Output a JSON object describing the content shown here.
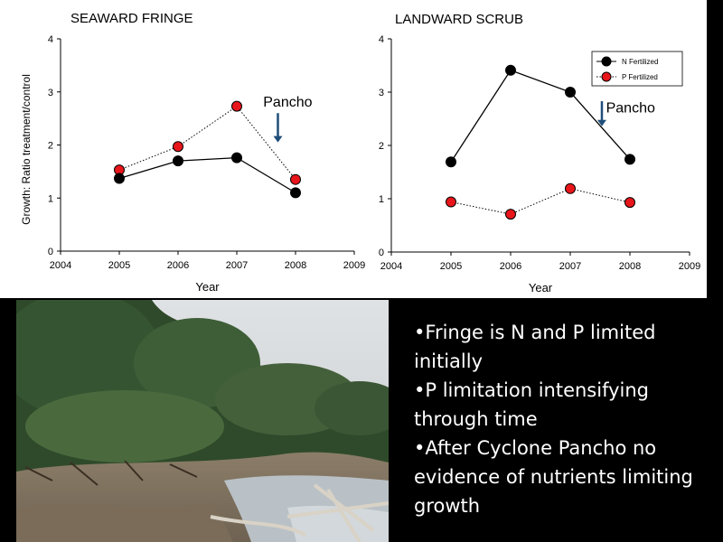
{
  "chart_data": [
    {
      "type": "line",
      "title": "SEAWARD FRINGE",
      "xlabel": "Year",
      "ylabel": "Growth: Ratio treatment/control",
      "xlim": [
        2004,
        2009
      ],
      "ylim": [
        0,
        4
      ],
      "x_ticks": [
        2004,
        2005,
        2006,
        2007,
        2008,
        2009
      ],
      "y_ticks": [
        0,
        1,
        2,
        3,
        4
      ],
      "x": [
        2005,
        2006,
        2007,
        2008
      ],
      "series": [
        {
          "key": "N",
          "style": "solid",
          "color": "#000000",
          "values": [
            1.37,
            1.7,
            1.76,
            1.1
          ]
        },
        {
          "key": "P",
          "style": "dotted",
          "color": "#e8161b",
          "values": [
            1.53,
            1.97,
            2.73,
            1.35
          ]
        }
      ],
      "annotation": {
        "text": "Pancho",
        "arrow_x": 2007.7,
        "arrow_y_from": 2.6,
        "arrow_y_to": 2.05,
        "text_x": 2007.45,
        "text_y": 2.72,
        "arrow_color": "#1f4e79"
      },
      "legend": null
    },
    {
      "type": "line",
      "title": "LANDWARD SCRUB",
      "xlabel": "Year",
      "ylabel": "",
      "xlim": [
        2004,
        2009
      ],
      "ylim": [
        0,
        4
      ],
      "x_ticks": [
        2004,
        2005,
        2006,
        2007,
        2008,
        2009
      ],
      "y_ticks": [
        0,
        1,
        2,
        3,
        4
      ],
      "x": [
        2005,
        2006,
        2007,
        2008
      ],
      "series": [
        {
          "key": "N",
          "name": "N Fertilized",
          "style": "solid",
          "color": "#000000",
          "values": [
            1.69,
            3.41,
            3.0,
            1.74
          ]
        },
        {
          "key": "P",
          "name": "P Fertilized",
          "style": "dotted",
          "color": "#e8161b",
          "values": [
            0.94,
            0.71,
            1.19,
            0.93
          ]
        }
      ],
      "annotation": {
        "text": "Pancho",
        "arrow_x": 2007.53,
        "arrow_y_from": 2.83,
        "arrow_y_to": 2.36,
        "text_x": 2007.6,
        "text_y": 2.62,
        "arrow_color": "#1f4e79"
      },
      "legend": "top-right"
    }
  ],
  "bullets": [
    "•Fringe is N and P limited initially",
    "•P limitation intensifying through time",
    "•After Cyclone Pancho no evidence of nutrients limiting growth"
  ]
}
